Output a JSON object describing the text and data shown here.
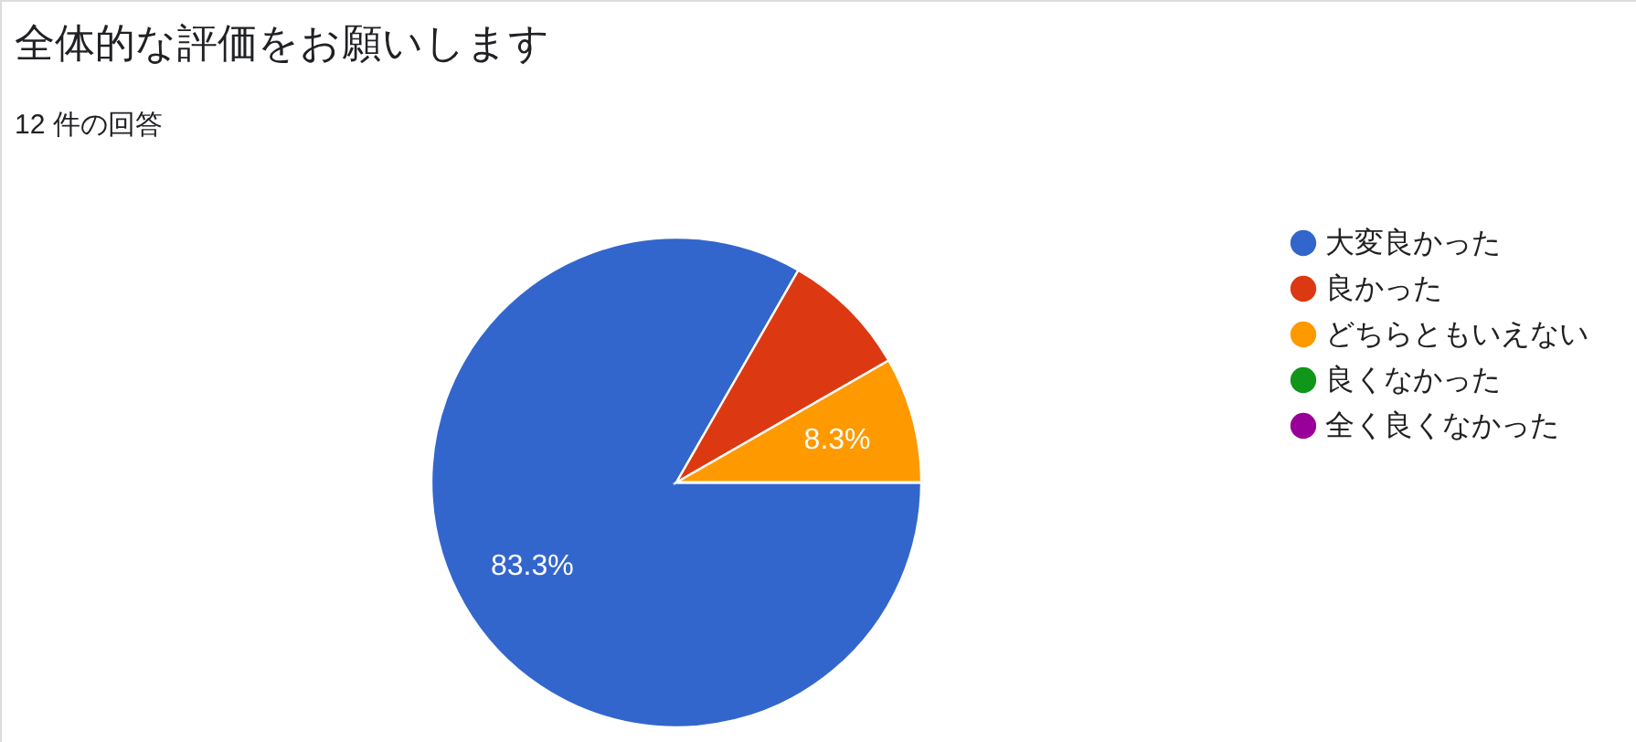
{
  "chart_data": {
    "type": "pie",
    "title": "全体的な評価をお願いします",
    "subtitle": "12 件の回答",
    "categories": [
      "大変良かった",
      "良かった",
      "どちらともいえない",
      "良くなかった",
      "全く良くなかった"
    ],
    "values": [
      83.3,
      8.4,
      8.3,
      0,
      0
    ],
    "colors": [
      "#3366cc",
      "#dc3912",
      "#ff9900",
      "#109618",
      "#990099"
    ],
    "value_labels": [
      "83.3%",
      null,
      "8.3%",
      null,
      null
    ],
    "legend": "right"
  }
}
